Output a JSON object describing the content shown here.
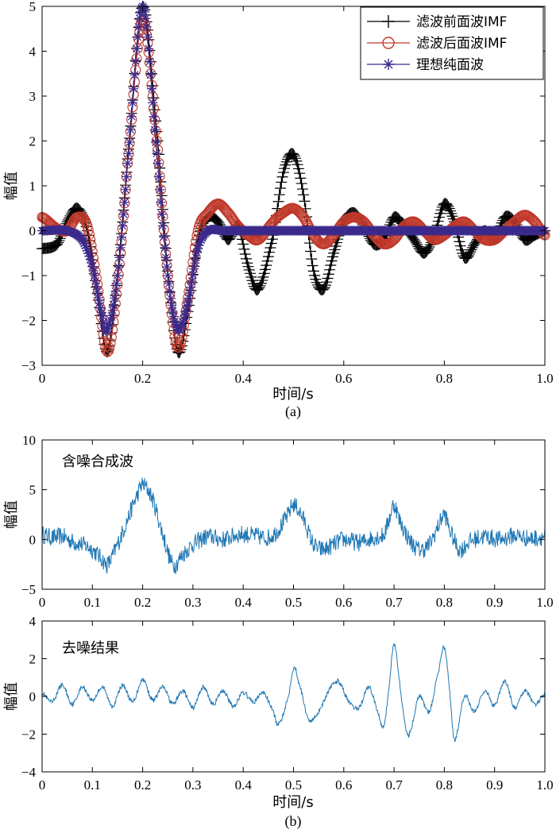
{
  "colors": {
    "before": "#000000",
    "after": "#c0392b",
    "ideal": "#3b2a8c",
    "signal": "#1f77b4"
  },
  "chart_data": [
    {
      "type": "line",
      "caption": "(a)",
      "xlabel": "时间/s",
      "ylabel": "幅值",
      "xlim": [
        0,
        1
      ],
      "ylim": [
        -3,
        5
      ],
      "xticks": [
        0,
        0.2,
        0.4,
        0.6,
        0.8,
        1.0
      ],
      "xtick_labels": [
        "0",
        "0.2",
        "0.4",
        "0.6",
        "0.8",
        "1.0"
      ],
      "yticks": [
        -3,
        -2,
        -1,
        0,
        1,
        2,
        3,
        4,
        5
      ],
      "yticks_labels": [
        "−3",
        "−2",
        "−1",
        "0",
        "1",
        "2",
        "3",
        "4",
        "5"
      ],
      "legend_position": "top-right",
      "series": [
        {
          "name": "滤波前面波IMF",
          "marker": "plus",
          "color": "#000000",
          "x": [
            0,
            0.03,
            0.05,
            0.07,
            0.09,
            0.11,
            0.13,
            0.15,
            0.17,
            0.2,
            0.23,
            0.25,
            0.27,
            0.29,
            0.31,
            0.33,
            0.35,
            0.37,
            0.39,
            0.41,
            0.43,
            0.46,
            0.48,
            0.5,
            0.52,
            0.54,
            0.56,
            0.58,
            0.6,
            0.62,
            0.64,
            0.66,
            0.68,
            0.7,
            0.72,
            0.74,
            0.76,
            0.78,
            0.8,
            0.82,
            0.84,
            0.86,
            0.88,
            0.9,
            0.92,
            0.94,
            0.96,
            0.98,
            1.0
          ],
          "y": [
            -0.4,
            -0.3,
            0.2,
            0.5,
            0.0,
            -1.4,
            -2.7,
            -1.0,
            1.6,
            5.0,
            2.0,
            -0.9,
            -2.7,
            -1.8,
            -0.2,
            0.3,
            0.2,
            -0.2,
            0.1,
            -0.8,
            -1.3,
            -0.1,
            1.3,
            1.7,
            0.8,
            -0.9,
            -1.3,
            -0.5,
            0.2,
            0.4,
            0.1,
            -0.3,
            -0.2,
            0.3,
            0.1,
            -0.2,
            -0.5,
            -0.1,
            0.6,
            0.2,
            -0.6,
            -0.3,
            0.0,
            -0.2,
            0.3,
            0.2,
            -0.2,
            -0.1,
            0.0
          ]
        },
        {
          "name": "滤波后面波IMF",
          "marker": "circle",
          "color": "#c0392b",
          "x": [
            0,
            0.03,
            0.05,
            0.07,
            0.09,
            0.11,
            0.13,
            0.15,
            0.17,
            0.2,
            0.23,
            0.25,
            0.27,
            0.29,
            0.31,
            0.33,
            0.35,
            0.37,
            0.39,
            0.41,
            0.43,
            0.46,
            0.48,
            0.5,
            0.52,
            0.54,
            0.56,
            0.58,
            0.6,
            0.62,
            0.64,
            0.66,
            0.68,
            0.7,
            0.72,
            0.74,
            0.76,
            0.78,
            0.8,
            0.82,
            0.84,
            0.86,
            0.88,
            0.9,
            0.92,
            0.94,
            0.96,
            0.98,
            1.0
          ],
          "y": [
            0.3,
            0.05,
            0.0,
            0.3,
            0.1,
            -1.2,
            -2.7,
            -1.2,
            1.5,
            4.7,
            1.8,
            -1.0,
            -2.6,
            -1.5,
            0.0,
            0.4,
            0.6,
            0.4,
            0.1,
            -0.1,
            -0.2,
            0.2,
            0.4,
            0.5,
            0.3,
            -0.1,
            -0.3,
            -0.1,
            0.2,
            0.3,
            0.2,
            -0.1,
            -0.3,
            -0.2,
            0.1,
            0.2,
            0.0,
            -0.2,
            -0.1,
            0.1,
            0.2,
            0.0,
            -0.2,
            -0.2,
            0.0,
            0.2,
            0.35,
            0.2,
            -0.1
          ]
        },
        {
          "name": "理想纯面波",
          "marker": "asterisk",
          "color": "#3b2a8c",
          "x": [
            0,
            0.05,
            0.08,
            0.1,
            0.12,
            0.13,
            0.15,
            0.17,
            0.2,
            0.23,
            0.25,
            0.27,
            0.29,
            0.31,
            0.33,
            0.36,
            0.4,
            0.5,
            0.6,
            0.7,
            0.8,
            0.9,
            1.0
          ],
          "y": [
            0.0,
            0.0,
            -0.2,
            -0.8,
            -1.9,
            -2.2,
            -1.0,
            1.5,
            5.0,
            1.5,
            -1.0,
            -2.2,
            -1.6,
            -0.4,
            0.0,
            0.0,
            0.0,
            0.0,
            0.0,
            0.0,
            0.0,
            0.0,
            0.0
          ]
        }
      ]
    },
    {
      "type": "line",
      "annotation": "含噪合成波",
      "ylabel": "幅值",
      "xlim": [
        0,
        1
      ],
      "ylim": [
        -5,
        10
      ],
      "xticks": [
        0,
        0.1,
        0.2,
        0.3,
        0.4,
        0.5,
        0.6,
        0.7,
        0.8,
        0.9,
        1.0
      ],
      "xtick_labels": [
        "0",
        "0.1",
        "0.2",
        "0.3",
        "0.4",
        "0.5",
        "0.6",
        "0.7",
        "0.8",
        "0.9",
        "1.0"
      ],
      "yticks": [
        -5,
        0,
        5,
        10
      ],
      "yticks_labels": [
        "−5",
        "0",
        "5",
        "10"
      ],
      "series": [
        {
          "color": "#1f77b4",
          "x": [
            0,
            0.02,
            0.04,
            0.06,
            0.08,
            0.1,
            0.12,
            0.13,
            0.15,
            0.17,
            0.19,
            0.2,
            0.22,
            0.24,
            0.26,
            0.28,
            0.3,
            0.33,
            0.36,
            0.39,
            0.42,
            0.45,
            0.47,
            0.49,
            0.5,
            0.52,
            0.54,
            0.56,
            0.58,
            0.6,
            0.63,
            0.66,
            0.68,
            0.69,
            0.7,
            0.71,
            0.73,
            0.75,
            0.77,
            0.79,
            0.8,
            0.81,
            0.83,
            0.85,
            0.88,
            0.91,
            0.94,
            0.97,
            1.0
          ],
          "y": [
            0.5,
            0.2,
            0.3,
            -0.2,
            -0.5,
            -1.0,
            -2.0,
            -2.5,
            -0.5,
            2.0,
            4.5,
            5.5,
            4.0,
            0.5,
            -2.5,
            -1.5,
            -0.5,
            0.3,
            0.0,
            0.5,
            0.4,
            0.2,
            1.0,
            2.5,
            3.5,
            2.0,
            -0.5,
            -1.0,
            -0.5,
            0.0,
            -0.3,
            0.2,
            0.5,
            2.0,
            3.5,
            2.0,
            0.0,
            -1.0,
            -0.5,
            1.5,
            2.5,
            1.0,
            -1.0,
            -0.2,
            0.3,
            0.0,
            0.4,
            0.1,
            0.3
          ]
        }
      ]
    },
    {
      "type": "line",
      "caption": "(b)",
      "annotation": "去噪结果",
      "xlabel": "时间/s",
      "ylabel": "幅值",
      "xlim": [
        0,
        1
      ],
      "ylim": [
        -4,
        4
      ],
      "xticks": [
        0,
        0.1,
        0.2,
        0.3,
        0.4,
        0.5,
        0.6,
        0.7,
        0.8,
        0.9,
        1.0
      ],
      "xtick_labels": [
        "0",
        "0.1",
        "0.2",
        "0.3",
        "0.4",
        "0.5",
        "0.6",
        "0.7",
        "0.8",
        "0.9",
        "1.0"
      ],
      "yticks": [
        -4,
        -2,
        0,
        2,
        4
      ],
      "yticks_labels": [
        "−4",
        "−2",
        "0",
        "2",
        "4"
      ],
      "series": [
        {
          "color": "#1f77b4",
          "x": [
            0,
            0.02,
            0.04,
            0.06,
            0.08,
            0.1,
            0.12,
            0.14,
            0.16,
            0.18,
            0.2,
            0.22,
            0.24,
            0.26,
            0.28,
            0.3,
            0.32,
            0.34,
            0.36,
            0.38,
            0.4,
            0.42,
            0.44,
            0.46,
            0.47,
            0.49,
            0.5,
            0.51,
            0.53,
            0.55,
            0.57,
            0.59,
            0.61,
            0.63,
            0.65,
            0.67,
            0.68,
            0.69,
            0.7,
            0.71,
            0.72,
            0.73,
            0.75,
            0.77,
            0.79,
            0.8,
            0.81,
            0.82,
            0.84,
            0.86,
            0.88,
            0.9,
            0.92,
            0.94,
            0.96,
            0.98,
            1.0
          ],
          "y": [
            0.2,
            -0.3,
            0.6,
            -0.4,
            0.5,
            -0.2,
            0.5,
            -0.5,
            0.6,
            -0.3,
            0.9,
            -0.2,
            0.5,
            -0.4,
            0.3,
            -0.6,
            0.5,
            -0.4,
            0.3,
            -0.5,
            0.2,
            -0.3,
            0.2,
            -0.8,
            -1.5,
            0.0,
            1.5,
            0.8,
            -1.2,
            -0.8,
            0.3,
            0.8,
            -0.3,
            -0.6,
            0.5,
            -1.0,
            -1.5,
            0.5,
            2.8,
            1.0,
            -1.2,
            -2.0,
            0.0,
            -0.8,
            1.5,
            2.6,
            0.5,
            -2.3,
            0.0,
            -0.8,
            0.3,
            -0.5,
            0.8,
            -0.6,
            0.3,
            -0.4,
            0.1
          ]
        }
      ]
    }
  ]
}
